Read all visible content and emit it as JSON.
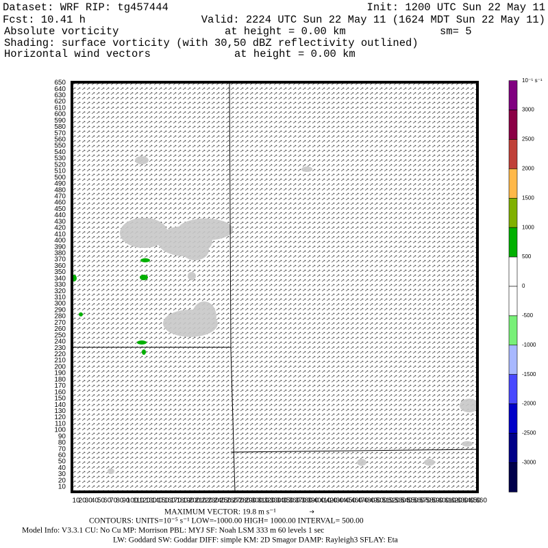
{
  "header": {
    "dataset": "Dataset: WRF  RIP: tg457444",
    "init": "Init: 1200 UTC Sun 22 May 11",
    "fcst": "Fcst:   10.41 h",
    "valid": "Valid: 2224 UTC Sun 22 May 11 (1624 MDT Sun 22 May 11)",
    "field1": "Absolute vorticity",
    "height1": "at height =  0.00 km",
    "smooth": "sm= 5",
    "shading": "Shading: surface vorticity (with 30,50 dBZ reflectivity outlined)",
    "field2": "Horizontal wind vectors",
    "height2": "at height =  0.00 km"
  },
  "plot": {
    "yticks": [
      10,
      20,
      30,
      40,
      50,
      60,
      70,
      80,
      90,
      100,
      110,
      120,
      130,
      140,
      150,
      160,
      170,
      180,
      190,
      200,
      210,
      220,
      230,
      240,
      250,
      260,
      270,
      280,
      290,
      300,
      310,
      320,
      330,
      340,
      350,
      360,
      370,
      380,
      390,
      400,
      410,
      420,
      430,
      440,
      450,
      460,
      470,
      480,
      490,
      500,
      510,
      520,
      530,
      540,
      550,
      560,
      570,
      580,
      590,
      600,
      610,
      620,
      630,
      640,
      650
    ],
    "xticks": [
      10,
      20,
      30,
      40,
      50,
      60,
      70,
      80,
      90,
      100,
      110,
      120,
      130,
      140,
      150,
      160,
      170,
      180,
      190,
      200,
      210,
      220,
      230,
      240,
      250,
      260,
      270,
      280,
      290,
      300,
      310,
      320,
      330,
      340,
      350,
      360,
      370,
      380,
      390,
      400,
      410,
      420,
      430,
      440,
      450,
      460,
      470,
      480,
      490,
      500,
      510,
      520,
      530,
      540,
      550,
      560,
      570,
      580,
      590,
      600,
      610,
      620,
      630,
      640,
      650,
      660
    ]
  },
  "colorbar": {
    "unit": "10⁻⁵ s⁻¹",
    "levels": [
      3000,
      2500,
      2000,
      1500,
      1000,
      500,
      0,
      -500,
      -1000,
      -1500,
      -2000,
      -2500,
      -3000
    ],
    "colors": [
      "#800080",
      "#8b0045",
      "#c04038",
      "#ffb848",
      "#80b000",
      "#00b000",
      "#ffffff",
      "#ffffff",
      "#78f078",
      "#a8b8ff",
      "#4848ff",
      "#0000c8",
      "#000088",
      "#00004a"
    ]
  },
  "footer": {
    "max_vector": "MAXIMUM VECTOR:  19.8 m s⁻¹",
    "contours": "CONTOURS:  UNITS=10⁻⁵ s⁻¹  LOW=-1000.00      HIGH= 1000.00      INTERVAL=    500.00",
    "model_info": "Model Info: V3.3.1     CU: No Cu     MP: Morrison     PBL: MYJ       SF: Noah LSM      333 m     60 levels      1 sec",
    "physics": "LW: Goddard  SW: Goddar  DIFF: simple  KM: 2D Smagor  DAMP: Rayleigh3   SFLAY: Eta"
  }
}
